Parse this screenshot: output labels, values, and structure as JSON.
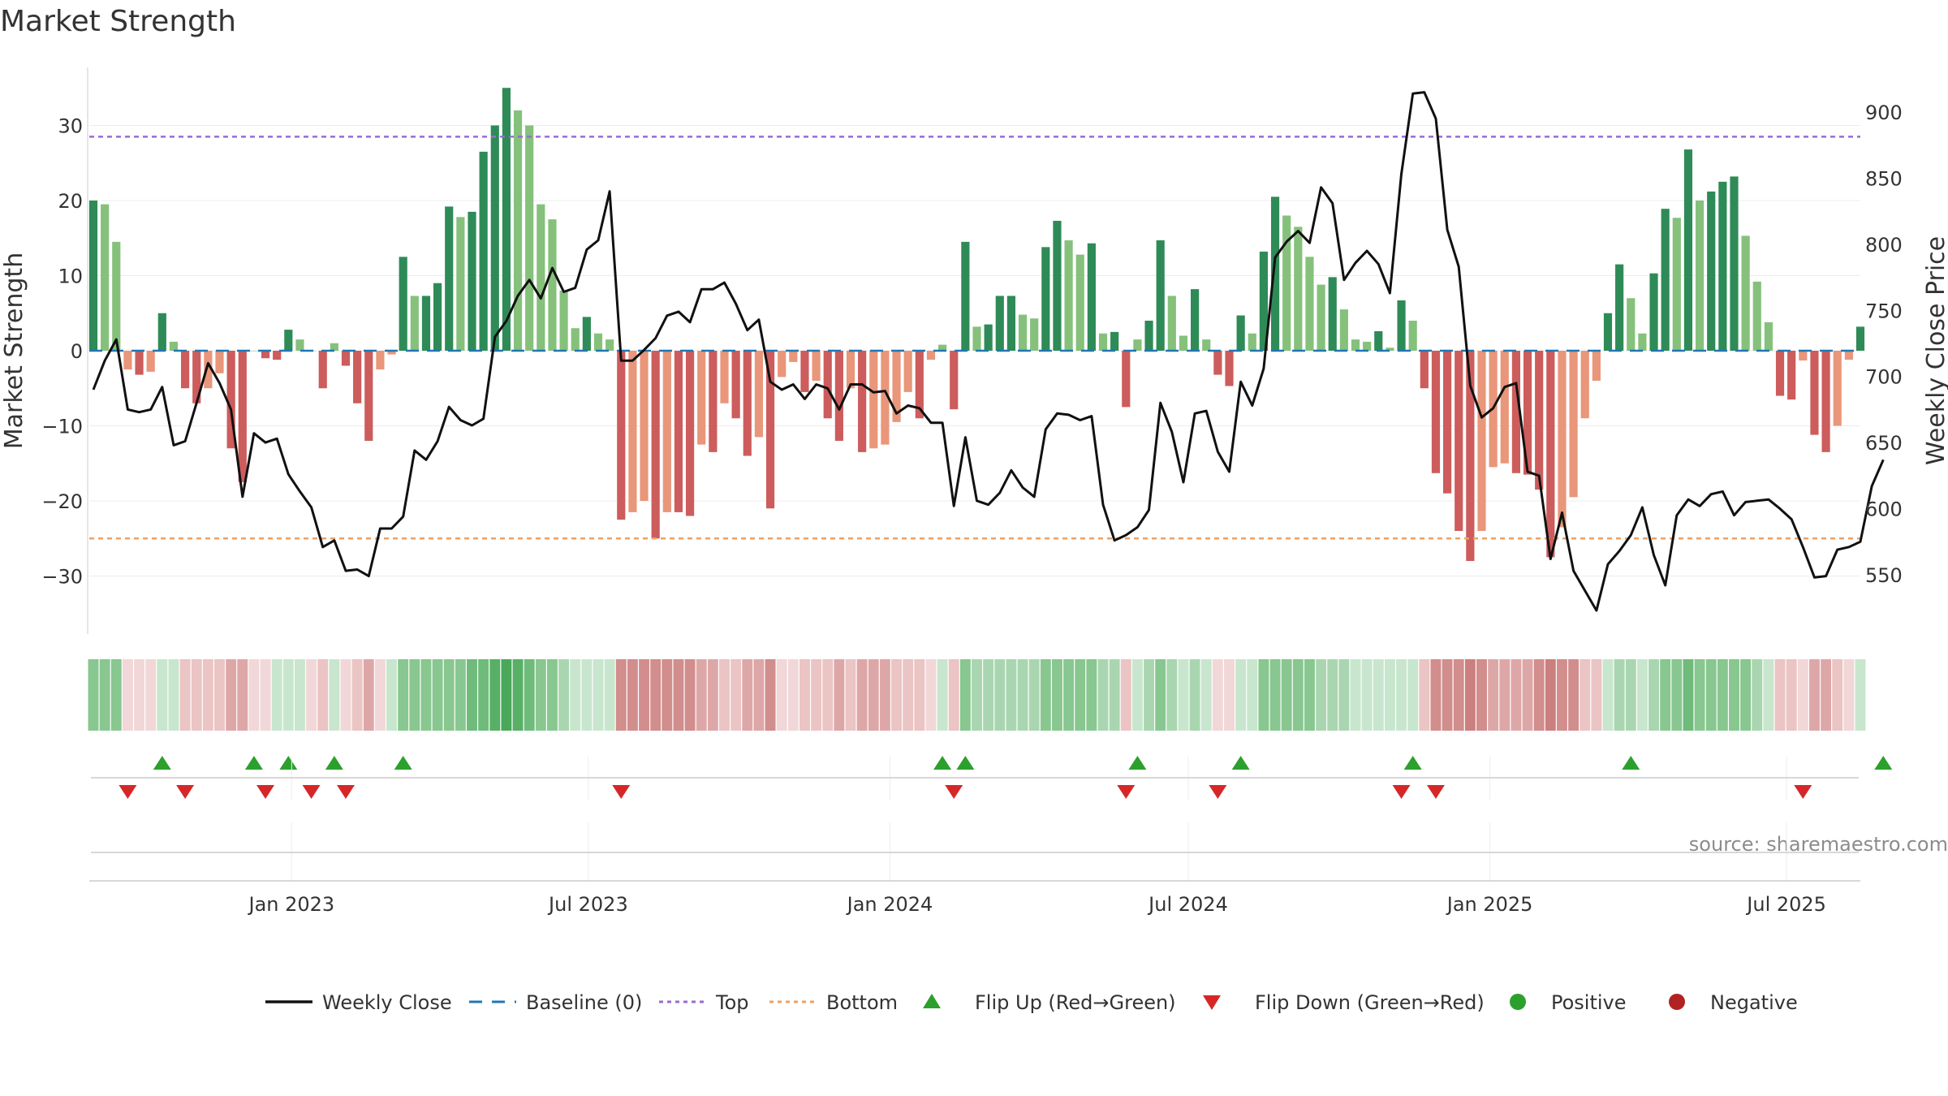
{
  "chart_data": {
    "type": "bar",
    "title": "Market Strength",
    "ylabel_left": "Market Strength",
    "ylabel_right": "Weekly Close Price",
    "ylim_left": [
      -38,
      38
    ],
    "ylim_right": [
      505,
      920
    ],
    "yticks_left": [
      30,
      20,
      10,
      0,
      -10,
      -20,
      -30
    ],
    "ytick_labels_left": [
      "30",
      "20",
      "10",
      "0",
      "−10",
      "−20",
      "−30"
    ],
    "yticks_right": [
      900,
      850,
      800,
      750,
      700,
      650,
      600,
      550
    ],
    "ytick_labels_right": [
      "900",
      "850",
      "800",
      "750",
      "700",
      "650",
      "600",
      "550"
    ],
    "top_threshold": 28.5,
    "bottom_threshold": -25,
    "baseline": 0,
    "x_axis": {
      "start_date": "2022-09-02",
      "end_date": "2025-09-26",
      "ticks": [
        {
          "date": "2023-01-01",
          "label": "Jan 2023"
        },
        {
          "date": "2023-07-01",
          "label": "Jul 2023"
        },
        {
          "date": "2024-01-01",
          "label": "Jan 2024"
        },
        {
          "date": "2024-07-01",
          "label": "Jul 2024"
        },
        {
          "date": "2025-01-01",
          "label": "Jan 2025"
        },
        {
          "date": "2025-07-01",
          "label": "Jul 2025"
        }
      ]
    },
    "strength": [
      20,
      19.5,
      14.5,
      -2.5,
      -3.2,
      -2.8,
      5,
      1.2,
      -5,
      -7,
      -5,
      -3,
      -13,
      -17.5,
      0,
      -1,
      -1.2,
      2.8,
      1.5,
      0,
      -5,
      1,
      -2,
      -7,
      -12,
      -2.5,
      -0.5,
      12.5,
      7.3,
      7.3,
      9,
      19.2,
      17.8,
      18.5,
      26.5,
      30,
      35,
      32,
      30,
      19.5,
      17.5,
      8,
      3,
      4.5,
      2.3,
      1.5,
      -22.5,
      -21.5,
      -20,
      -25,
      -21.5,
      -21.5,
      -22,
      -12.5,
      -13.5,
      -7,
      -9,
      -14,
      -11.5,
      -21,
      -3.5,
      -1.5,
      -5.5,
      -4,
      -9,
      -12,
      -5,
      -13.5,
      -13,
      -12.5,
      -9.5,
      -5.5,
      -9,
      -1.2,
      0.8,
      -7.8,
      14.5,
      3.2,
      3.5,
      7.3,
      7.3,
      4.8,
      4.3,
      13.8,
      17.3,
      14.7,
      12.8,
      14.3,
      2.3,
      2.5,
      -7.5,
      1.5,
      4,
      14.7,
      7.3,
      2,
      8.2,
      1.5,
      -3.2,
      -4.7,
      4.7,
      2.3,
      13.2,
      20.5,
      18,
      16.5,
      12.5,
      8.8,
      9.8,
      5.5,
      1.5,
      1.2,
      2.6,
      0.4,
      6.7,
      4,
      -5,
      -16.3,
      -19,
      -24,
      -28,
      -24,
      -15.5,
      -15,
      -16.3,
      -16.5,
      -18.5,
      -27.5,
      -23.5,
      -19.5,
      -9,
      -4,
      5,
      11.5,
      7,
      2.3,
      10.3,
      18.9,
      17.7,
      26.8,
      20,
      21.2,
      22.5,
      23.2,
      15.3,
      9.2,
      3.8,
      -6,
      -6.5,
      -1.3,
      -11.2,
      -13.5,
      -10,
      -1.2,
      3.2
    ],
    "price": [
      690,
      712,
      728,
      675,
      673,
      675,
      692,
      648,
      651,
      680,
      710,
      695,
      675,
      609,
      657,
      650,
      653,
      626,
      613,
      601,
      571,
      576,
      553,
      554,
      549,
      585,
      585,
      594,
      644,
      637,
      651,
      677,
      667,
      663,
      668,
      730,
      742,
      761,
      773,
      759,
      782,
      764,
      767,
      796,
      803,
      840,
      712,
      712,
      720,
      729,
      746,
      749,
      741,
      766,
      766,
      771,
      755,
      735,
      743,
      696,
      690,
      694,
      683,
      694,
      691,
      675,
      694,
      694,
      688,
      689,
      672,
      678,
      676,
      665,
      665,
      602,
      654,
      606,
      603,
      612,
      629,
      616,
      609,
      660,
      672,
      671,
      667,
      670,
      603,
      576,
      580,
      586,
      599,
      680,
      658,
      620,
      672,
      674,
      643,
      628,
      696,
      678,
      706,
      790,
      802,
      810,
      801,
      843,
      831,
      773,
      786,
      795,
      785,
      763,
      853,
      914,
      915,
      895,
      811,
      783,
      693,
      669,
      676,
      692,
      695,
      628,
      625,
      562,
      597,
      553,
      538,
      523,
      558,
      568,
      580,
      601,
      565,
      542,
      595,
      607,
      602,
      611,
      613,
      595,
      605,
      606,
      607,
      600,
      592,
      571,
      548,
      549,
      569,
      571,
      575,
      617,
      637
    ],
    "strip_colors": [
      "#88c790",
      "#88c790",
      "#88c790",
      "#f1d7d7",
      "#f1d7d7",
      "#f1d7d7",
      "#c8e6cd",
      "#c8e6cd",
      "#ebc4c4",
      "#ebc4c4",
      "#ebc4c4",
      "#ebc4c4",
      "#dea7a7",
      "#dea7a7",
      "#f1d7d7",
      "#f1d7d7",
      "#c8e6cd",
      "#c8e6cd",
      "#c8e6cd",
      "#f1d7d7",
      "#ebc4c4",
      "#c8e6cd",
      "#f1d7d7",
      "#ebc4c4",
      "#dea7a7",
      "#f1d7d7",
      "#c8e6cd",
      "#88c790",
      "#88c790",
      "#88c790",
      "#88c790",
      "#88c790",
      "#88c790",
      "#6fbb7b",
      "#6fbb7b",
      "#57b065",
      "#4aa85a",
      "#57b065",
      "#6fbb7b",
      "#88c790",
      "#88c790",
      "#a9d6b0",
      "#c8e6cd",
      "#c8e6cd",
      "#c8e6cd",
      "#c8e6cd",
      "#d28d8d",
      "#d28d8d",
      "#d28d8d",
      "#d28d8d",
      "#d28d8d",
      "#d28d8d",
      "#d28d8d",
      "#dea7a7",
      "#dea7a7",
      "#ebc4c4",
      "#ebc4c4",
      "#dea7a7",
      "#dea7a7",
      "#d28d8d",
      "#f1d7d7",
      "#f1d7d7",
      "#ebc4c4",
      "#ebc4c4",
      "#ebc4c4",
      "#dea7a7",
      "#ebc4c4",
      "#dea7a7",
      "#dea7a7",
      "#dea7a7",
      "#ebc4c4",
      "#ebc4c4",
      "#ebc4c4",
      "#f1d7d7",
      "#c8e6cd",
      "#ebc4c4",
      "#88c790",
      "#a9d6b0",
      "#a9d6b0",
      "#a9d6b0",
      "#a9d6b0",
      "#a9d6b0",
      "#a9d6b0",
      "#88c790",
      "#88c790",
      "#88c790",
      "#88c790",
      "#88c790",
      "#a9d6b0",
      "#a9d6b0",
      "#ebc4c4",
      "#c8e6cd",
      "#a9d6b0",
      "#88c790",
      "#a9d6b0",
      "#c8e6cd",
      "#a9d6b0",
      "#c8e6cd",
      "#f1d7d7",
      "#f1d7d7",
      "#c8e6cd",
      "#c8e6cd",
      "#88c790",
      "#88c790",
      "#88c790",
      "#88c790",
      "#88c790",
      "#a9d6b0",
      "#a9d6b0",
      "#a9d6b0",
      "#c8e6cd",
      "#c8e6cd",
      "#c8e6cd",
      "#c8e6cd",
      "#c8e6cd",
      "#c8e6cd",
      "#ebc4c4",
      "#d28d8d",
      "#d28d8d",
      "#d28d8d",
      "#cc7f7f",
      "#d28d8d",
      "#dea7a7",
      "#dea7a7",
      "#dea7a7",
      "#dea7a7",
      "#d28d8d",
      "#cc7f7f",
      "#d28d8d",
      "#d28d8d",
      "#ebc4c4",
      "#ebc4c4",
      "#c8e6cd",
      "#a9d6b0",
      "#a9d6b0",
      "#c8e6cd",
      "#a9d6b0",
      "#88c790",
      "#88c790",
      "#6fbb7b",
      "#88c790",
      "#88c790",
      "#88c790",
      "#88c790",
      "#88c790",
      "#a9d6b0",
      "#c8e6cd",
      "#ebc4c4",
      "#ebc4c4",
      "#f1d7d7",
      "#dea7a7",
      "#dea7a7",
      "#ebc4c4",
      "#f1d7d7",
      "#c8e6cd"
    ],
    "flip_up_weeks": [
      6,
      14,
      17,
      21,
      27,
      74,
      76,
      91,
      100,
      115,
      134,
      156
    ],
    "flip_down_weeks": [
      3,
      8,
      15,
      19,
      22,
      46,
      75,
      90,
      98,
      114,
      117,
      149
    ],
    "legend": [
      {
        "name": "Weekly Close",
        "kind": "line",
        "color": "#111111"
      },
      {
        "name": "Baseline (0)",
        "kind": "dash",
        "color": "#1f77b4"
      },
      {
        "name": "Top",
        "kind": "dot",
        "color": "#9a6ad6"
      },
      {
        "name": "Bottom",
        "kind": "dot",
        "color": "#f0a060"
      },
      {
        "name": "Flip Up (Red→Green)",
        "kind": "tri-up",
        "color": "#2ca02c"
      },
      {
        "name": "Flip Down (Green→Red)",
        "kind": "tri-down",
        "color": "#d62728"
      },
      {
        "name": "Positive",
        "kind": "circle",
        "color": "#2ca02c"
      },
      {
        "name": "Negative",
        "kind": "circle",
        "color": "#b22222"
      }
    ],
    "colors": {
      "pos_strong": "#2e8b57",
      "pos_weak": "#86c17c",
      "neg_strong": "#cd5c5c",
      "neg_weak": "#e9967a",
      "line": "#111111",
      "baseline": "#1f77b4",
      "top": "#9a6ad6",
      "bottom": "#f0a060",
      "flip_up": "#2ca02c",
      "flip_down": "#d62728"
    },
    "source": "source: sharemaestro.com"
  }
}
